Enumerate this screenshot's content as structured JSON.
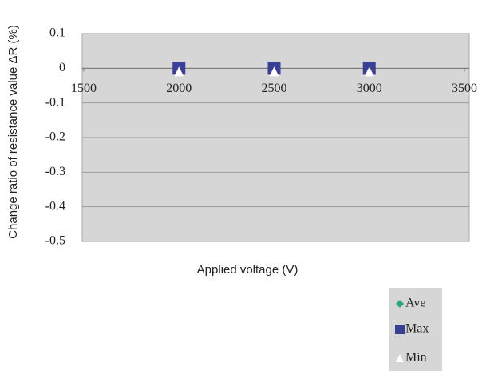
{
  "chart_data": {
    "type": "scatter",
    "ylabel": "Change ratio of resistance value ΔR (%)",
    "xlabel": "Applied voltage (V)",
    "x": [
      2000,
      2500,
      3000
    ],
    "series": [
      {
        "name": "Ave",
        "color": "#2aa87c",
        "marker": "diamond",
        "values": [
          0,
          0,
          0
        ]
      },
      {
        "name": "Max",
        "color": "#3a3f96",
        "marker": "square",
        "values": [
          0,
          0,
          0
        ]
      },
      {
        "name": "Min",
        "color": "#ffffff",
        "marker": "triangle",
        "values": [
          0,
          0,
          0
        ]
      }
    ],
    "xlim": [
      1500,
      3500
    ],
    "xticks": [
      1500,
      2000,
      2500,
      3000,
      3500
    ],
    "ylim": [
      -0.5,
      0.1
    ],
    "yticks": [
      0.1,
      0,
      -0.1,
      -0.2,
      -0.3,
      -0.4,
      -0.5
    ],
    "grid": true,
    "legend": "bottom-right"
  }
}
